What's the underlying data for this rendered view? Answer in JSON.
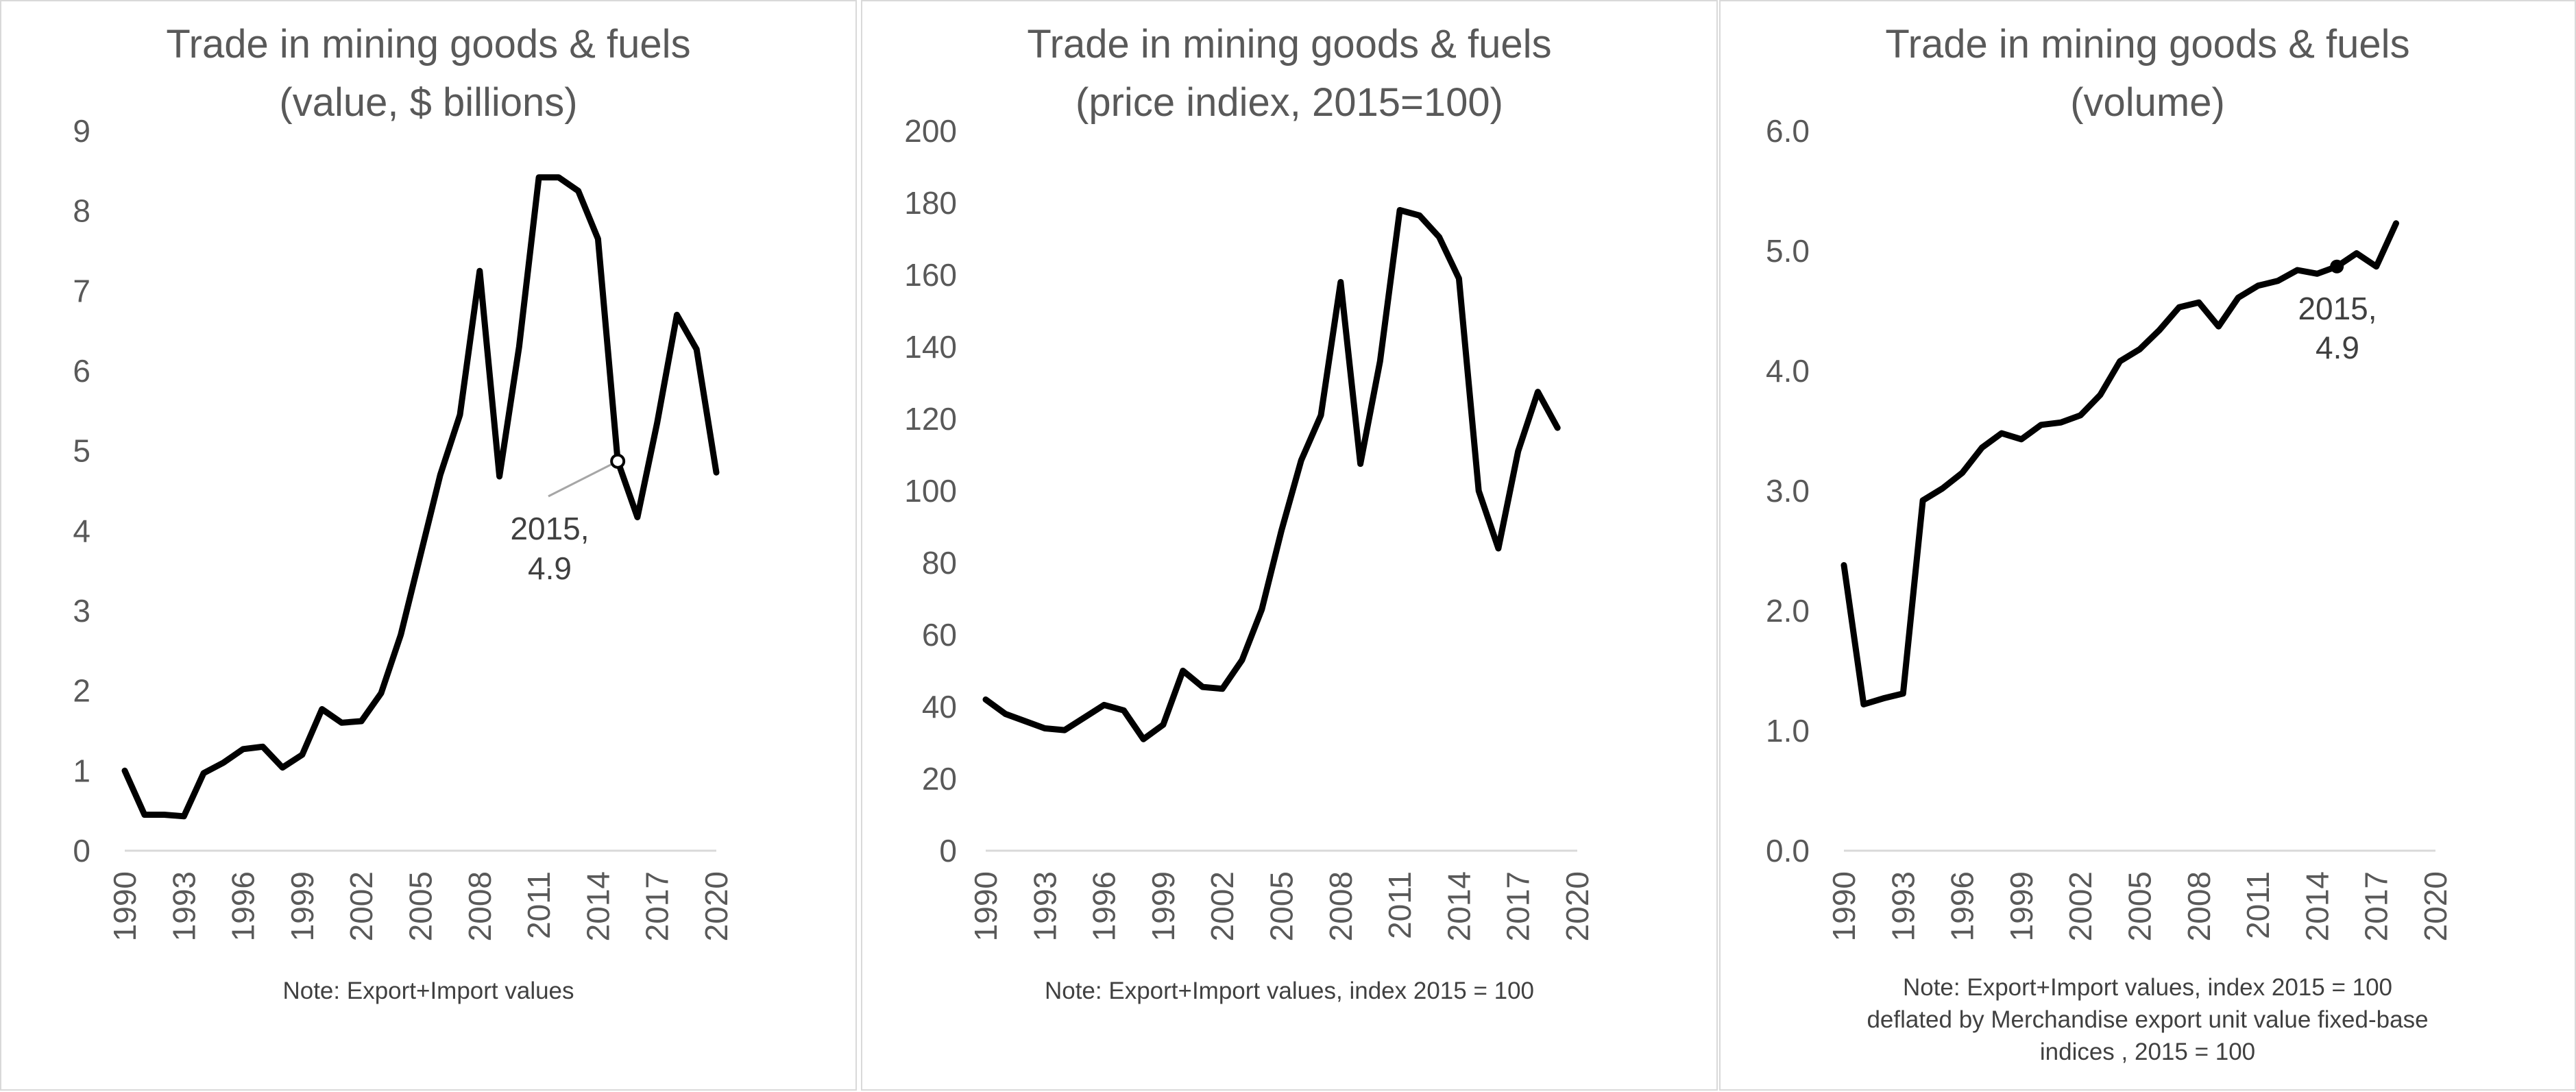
{
  "colors": {
    "line": "#000000",
    "text": "#595959",
    "axis": "#d9d9d9",
    "border": "#d9d9d9",
    "leader": "#a6a6a6"
  },
  "chart_data": [
    {
      "type": "line",
      "title": [
        "Trade in mining goods & fuels",
        "(value, $ billions)"
      ],
      "note": [
        "Note: Export+Import values"
      ],
      "xlabel": "",
      "ylabel": "",
      "grid": false,
      "legend": "none",
      "x": [
        1990,
        1991,
        1992,
        1993,
        1994,
        1995,
        1996,
        1997,
        1998,
        1999,
        2000,
        2001,
        2002,
        2003,
        2004,
        2005,
        2006,
        2007,
        2008,
        2009,
        2010,
        2011,
        2012,
        2013,
        2014,
        2015,
        2016,
        2017,
        2018,
        2019,
        2020
      ],
      "x_ticks": [
        "1990",
        "1993",
        "1996",
        "1999",
        "2002",
        "2005",
        "2008",
        "2011",
        "2014",
        "2017",
        "2020"
      ],
      "xlim": [
        1990,
        2020
      ],
      "ylim": [
        0,
        9
      ],
      "y_ticks": [
        "0",
        "1",
        "2",
        "3",
        "4",
        "5",
        "6",
        "7",
        "8",
        "9"
      ],
      "series": [
        {
          "values": [
            1.0,
            0.45,
            0.45,
            0.43,
            0.97,
            1.1,
            1.27,
            1.3,
            1.04,
            1.2,
            1.77,
            1.6,
            1.62,
            1.97,
            2.7,
            3.7,
            4.7,
            5.45,
            7.25,
            4.68,
            6.3,
            8.42,
            8.42,
            8.25,
            7.65,
            4.87,
            4.17,
            5.35,
            6.7,
            6.27,
            4.73
          ]
        }
      ],
      "annotation": {
        "x": 2015,
        "y": 4.87,
        "label_lines": [
          "2015,",
          "4.9"
        ]
      }
    },
    {
      "type": "line",
      "title": [
        "Trade in mining goods & fuels",
        "(price indiex, 2015=100)"
      ],
      "note": [
        "Note: Export+Import values, index 2015 = 100"
      ],
      "xlabel": "",
      "ylabel": "",
      "grid": false,
      "legend": "none",
      "x": [
        1990,
        1991,
        1992,
        1993,
        1994,
        1995,
        1996,
        1997,
        1998,
        1999,
        2000,
        2001,
        2002,
        2003,
        2004,
        2005,
        2006,
        2007,
        2008,
        2009,
        2010,
        2011,
        2012,
        2013,
        2014,
        2015,
        2016,
        2017,
        2018,
        2019
      ],
      "x_ticks": [
        "1990",
        "1993",
        "1996",
        "1999",
        "2002",
        "2005",
        "2008",
        "2011",
        "2014",
        "2017",
        "2020"
      ],
      "xlim": [
        1990,
        2020
      ],
      "ylim": [
        0,
        200
      ],
      "y_ticks": [
        "0",
        "20",
        "40",
        "60",
        "80",
        "100",
        "120",
        "140",
        "160",
        "180",
        "200"
      ],
      "series": [
        {
          "values": [
            42,
            38,
            36,
            34,
            33.5,
            37,
            40.5,
            39,
            31,
            35,
            50,
            45.5,
            45,
            53,
            67,
            89,
            108.5,
            121,
            158,
            107.5,
            136,
            178,
            176.5,
            170.5,
            159,
            100,
            84,
            111,
            127.5,
            117.5
          ]
        }
      ]
    },
    {
      "type": "line",
      "title": [
        "Trade in mining goods & fuels",
        "(volume)"
      ],
      "note": [
        "Note: Export+Import values, index 2015 = 100",
        "deflated by Merchandise export unit value fixed-base",
        "indices , 2015 = 100"
      ],
      "xlabel": "",
      "ylabel": "",
      "grid": false,
      "legend": "none",
      "x": [
        1990,
        1991,
        1992,
        1993,
        1994,
        1995,
        1996,
        1997,
        1998,
        1999,
        2000,
        2001,
        2002,
        2003,
        2004,
        2005,
        2006,
        2007,
        2008,
        2009,
        2010,
        2011,
        2012,
        2013,
        2014,
        2015,
        2016,
        2017,
        2018
      ],
      "x_ticks": [
        "1990",
        "1993",
        "1996",
        "1999",
        "2002",
        "2005",
        "2008",
        "2011",
        "2014",
        "2017",
        "2020"
      ],
      "xlim": [
        1990,
        2020
      ],
      "ylim": [
        0,
        6
      ],
      "y_ticks": [
        "0.0",
        "1.0",
        "2.0",
        "3.0",
        "4.0",
        "5.0",
        "6.0"
      ],
      "series": [
        {
          "values": [
            2.38,
            1.22,
            1.27,
            1.31,
            2.92,
            3.02,
            3.15,
            3.36,
            3.48,
            3.43,
            3.55,
            3.57,
            3.63,
            3.8,
            4.08,
            4.18,
            4.34,
            4.53,
            4.57,
            4.37,
            4.61,
            4.71,
            4.75,
            4.84,
            4.81,
            4.87,
            4.98,
            4.87,
            5.23
          ]
        }
      ],
      "annotation": {
        "x": 2015,
        "y": 4.87,
        "label_lines": [
          "2015,",
          "4.9"
        ]
      }
    }
  ]
}
